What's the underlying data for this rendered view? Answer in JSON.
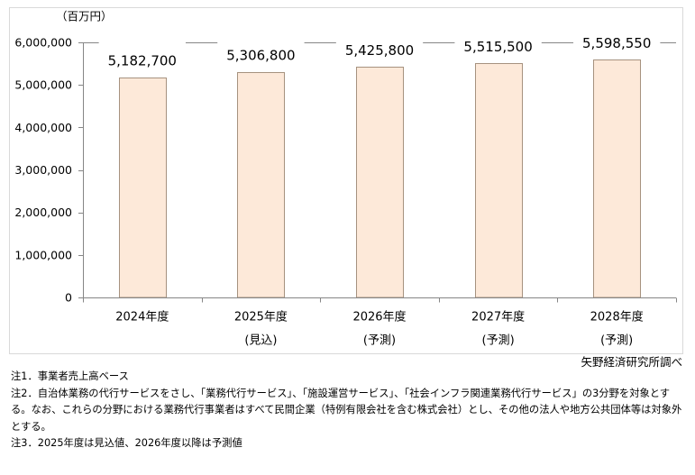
{
  "chart_data": {
    "type": "bar",
    "categories": [
      "2024年度",
      "2025年度",
      "2026年度",
      "2027年度",
      "2028年度"
    ],
    "category_notes": [
      "",
      "(見込)",
      "(予測)",
      "(予測)",
      "(予測)"
    ],
    "values": [
      5182700,
      5306800,
      5425800,
      5515500,
      5598550
    ],
    "data_labels": [
      "5,182,700",
      "5,306,800",
      "5,425,800",
      "5,515,500",
      "5,598,550"
    ],
    "unit_label": "（百万円）",
    "ylim": [
      0,
      6000000
    ],
    "yticks": [
      0,
      1000000,
      2000000,
      3000000,
      4000000,
      5000000,
      6000000
    ],
    "ytick_labels": [
      "0",
      "1,000,000",
      "2,000,000",
      "3,000,000",
      "4,000,000",
      "5,000,000",
      "6,000,000"
    ],
    "grid": false,
    "legend": "none",
    "colors": {
      "bar_fill": "#fde9d9",
      "bar_stroke": "#a6927f",
      "axis": "#868686",
      "frame": "#d9d9d9",
      "label_background": "#ffffff"
    }
  },
  "source": "矢野経済研究所調べ",
  "notes": [
    "注1．事業者売上高ベース",
    "注2．自治体業務の代行サービスをさし、「業務代行サービス」、「施設運営サービス」、「社会インフラ関連業務代行サービス」の3分野を対象とする。なお、これらの分野における業務代行事業者はすべて民間企業（特例有限会社を含む株式会社）とし、その他の法人や地方公共団体等は対象外とする。",
    "注3．2025年度は見込値、2026年度以降は予測値"
  ]
}
